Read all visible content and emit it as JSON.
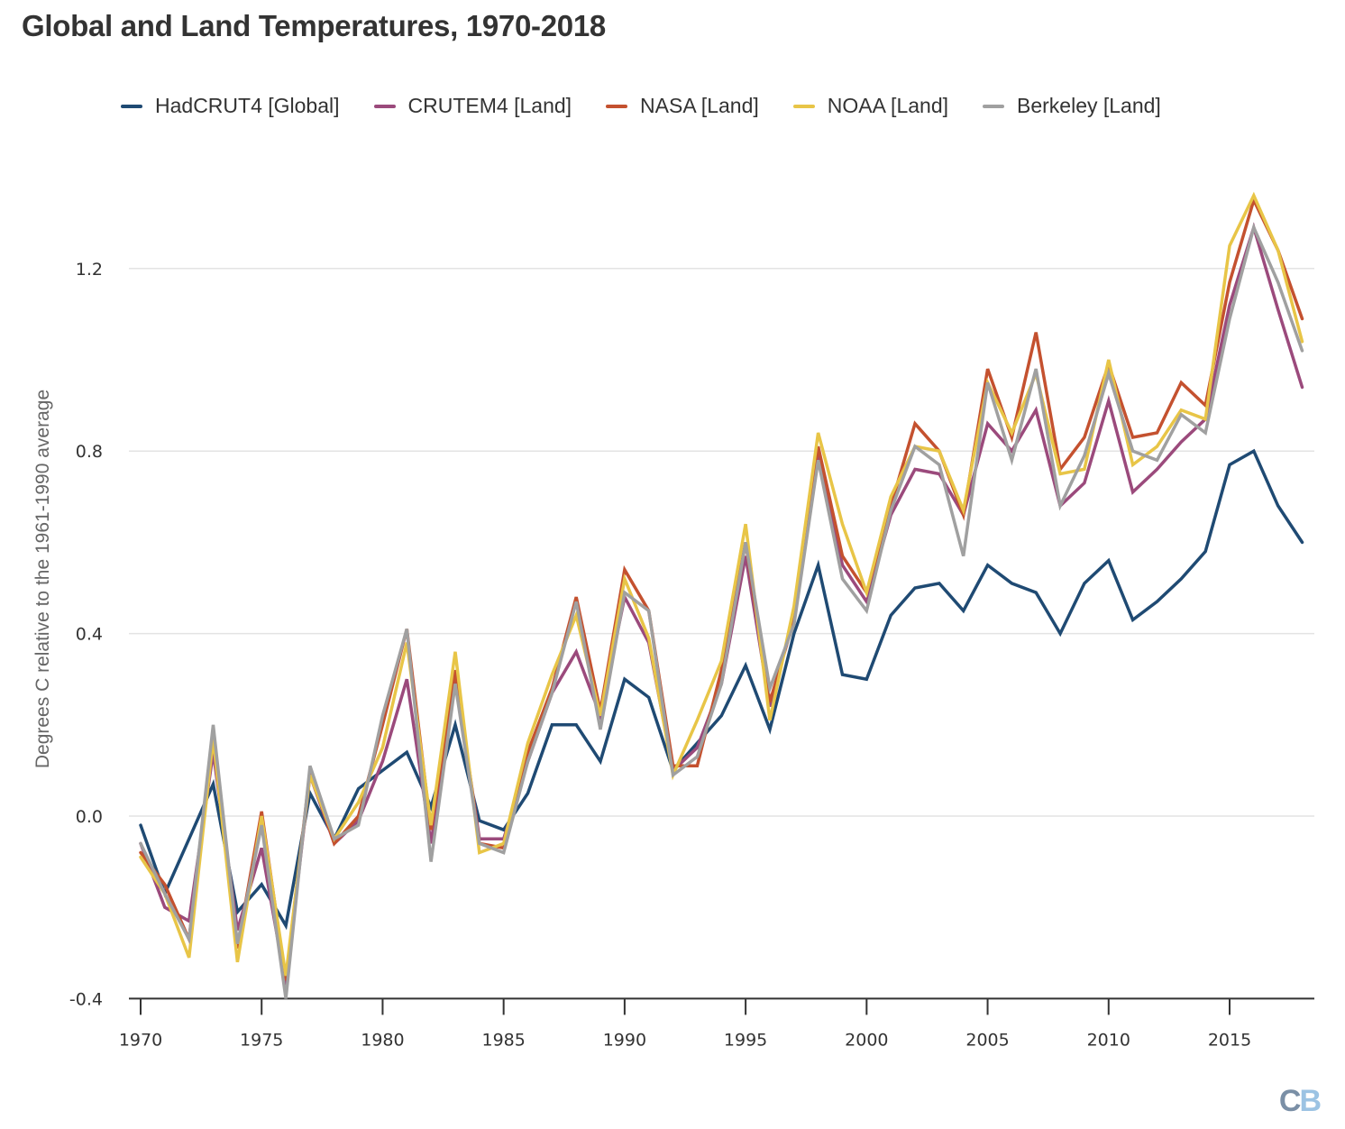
{
  "chart_data": {
    "type": "line",
    "title": "Global and Land Temperatures, 1970-2018",
    "xlabel": "",
    "ylabel": "Degrees C relative to the 1961-1990 average",
    "xlim": [
      1970,
      2018
    ],
    "ylim": [
      -0.4,
      1.4
    ],
    "grid": true,
    "legend_position": "top",
    "x_ticks": [
      1970,
      1975,
      1980,
      1985,
      1990,
      1995,
      2000,
      2005,
      2010,
      2015
    ],
    "x_tick_labels": [
      "1970",
      "1975",
      "1980",
      "1985",
      "1990",
      "1995",
      "2000",
      "2005",
      "2010",
      "2015"
    ],
    "y_ticks": [
      -0.4,
      0.0,
      0.4,
      0.8,
      1.2
    ],
    "y_tick_labels": [
      "-0.4",
      "0.0",
      "0.4",
      "0.8",
      "1.2"
    ],
    "x": [
      1970,
      1971,
      1972,
      1973,
      1974,
      1975,
      1976,
      1977,
      1978,
      1979,
      1980,
      1981,
      1982,
      1983,
      1984,
      1985,
      1986,
      1987,
      1988,
      1989,
      1990,
      1991,
      1992,
      1993,
      1994,
      1995,
      1996,
      1997,
      1998,
      1999,
      2000,
      2001,
      2002,
      2003,
      2004,
      2005,
      2006,
      2007,
      2008,
      2009,
      2010,
      2011,
      2012,
      2013,
      2014,
      2015,
      2016,
      2017,
      2018
    ],
    "series": [
      {
        "name": "HadCRUT4 [Global]",
        "color": "#1f4a73",
        "values": [
          -0.02,
          -0.17,
          -0.05,
          0.07,
          -0.21,
          -0.15,
          -0.24,
          0.05,
          -0.05,
          0.06,
          0.1,
          0.14,
          0.02,
          0.2,
          -0.01,
          -0.03,
          0.05,
          0.2,
          0.2,
          0.12,
          0.3,
          0.26,
          0.1,
          0.16,
          0.22,
          0.33,
          0.19,
          0.4,
          0.55,
          0.31,
          0.3,
          0.44,
          0.5,
          0.51,
          0.45,
          0.55,
          0.51,
          0.49,
          0.4,
          0.51,
          0.56,
          0.43,
          0.47,
          0.52,
          0.58,
          0.77,
          0.8,
          0.68,
          0.6
        ]
      },
      {
        "name": "CRUTEM4 [Land]",
        "color": "#9b4a7c",
        "values": [
          -0.06,
          -0.2,
          -0.23,
          0.14,
          -0.25,
          -0.07,
          -0.37,
          0.09,
          -0.06,
          -0.01,
          0.12,
          0.3,
          -0.06,
          0.31,
          -0.05,
          -0.05,
          0.12,
          0.27,
          0.36,
          0.22,
          0.48,
          0.38,
          0.1,
          0.15,
          0.29,
          0.57,
          0.24,
          0.44,
          0.79,
          0.55,
          0.47,
          0.66,
          0.76,
          0.75,
          0.66,
          0.86,
          0.8,
          0.89,
          0.68,
          0.73,
          0.91,
          0.71,
          0.76,
          0.82,
          0.87,
          1.12,
          1.29,
          1.11,
          0.94
        ]
      },
      {
        "name": "NASA [Land]",
        "color": "#c4512f",
        "values": [
          -0.08,
          -0.15,
          -0.27,
          0.18,
          -0.29,
          0.01,
          -0.36,
          0.1,
          -0.06,
          0.0,
          0.2,
          0.41,
          -0.03,
          0.32,
          -0.06,
          -0.07,
          0.14,
          0.28,
          0.48,
          0.23,
          0.54,
          0.45,
          0.11,
          0.11,
          0.32,
          0.6,
          0.25,
          0.43,
          0.81,
          0.57,
          0.49,
          0.68,
          0.86,
          0.8,
          0.66,
          0.98,
          0.83,
          1.06,
          0.76,
          0.83,
          0.99,
          0.83,
          0.84,
          0.95,
          0.9,
          1.17,
          1.35,
          1.24,
          1.09
        ]
      },
      {
        "name": "NOAA [Land]",
        "color": "#e8c547",
        "values": [
          -0.09,
          -0.17,
          -0.31,
          0.17,
          -0.32,
          0.0,
          -0.35,
          0.09,
          -0.05,
          0.03,
          0.15,
          0.38,
          -0.02,
          0.36,
          -0.08,
          -0.06,
          0.16,
          0.31,
          0.44,
          0.22,
          0.52,
          0.39,
          0.09,
          0.21,
          0.34,
          0.64,
          0.21,
          0.46,
          0.84,
          0.64,
          0.49,
          0.7,
          0.81,
          0.8,
          0.67,
          0.95,
          0.84,
          0.97,
          0.75,
          0.76,
          1.0,
          0.77,
          0.81,
          0.89,
          0.87,
          1.25,
          1.36,
          1.24,
          1.04
        ]
      },
      {
        "name": "Berkeley [Land]",
        "color": "#a0a0a0",
        "values": [
          -0.06,
          -0.17,
          -0.27,
          0.2,
          -0.28,
          -0.02,
          -0.4,
          0.11,
          -0.05,
          -0.02,
          0.22,
          0.41,
          -0.1,
          0.29,
          -0.06,
          -0.08,
          0.12,
          0.27,
          0.47,
          0.19,
          0.49,
          0.45,
          0.09,
          0.13,
          0.29,
          0.6,
          0.28,
          0.42,
          0.78,
          0.52,
          0.45,
          0.67,
          0.81,
          0.77,
          0.57,
          0.95,
          0.78,
          0.98,
          0.68,
          0.79,
          0.97,
          0.8,
          0.78,
          0.88,
          0.84,
          1.09,
          1.29,
          1.17,
          1.02
        ]
      }
    ]
  },
  "watermark": {
    "left": "C",
    "right": "B"
  }
}
